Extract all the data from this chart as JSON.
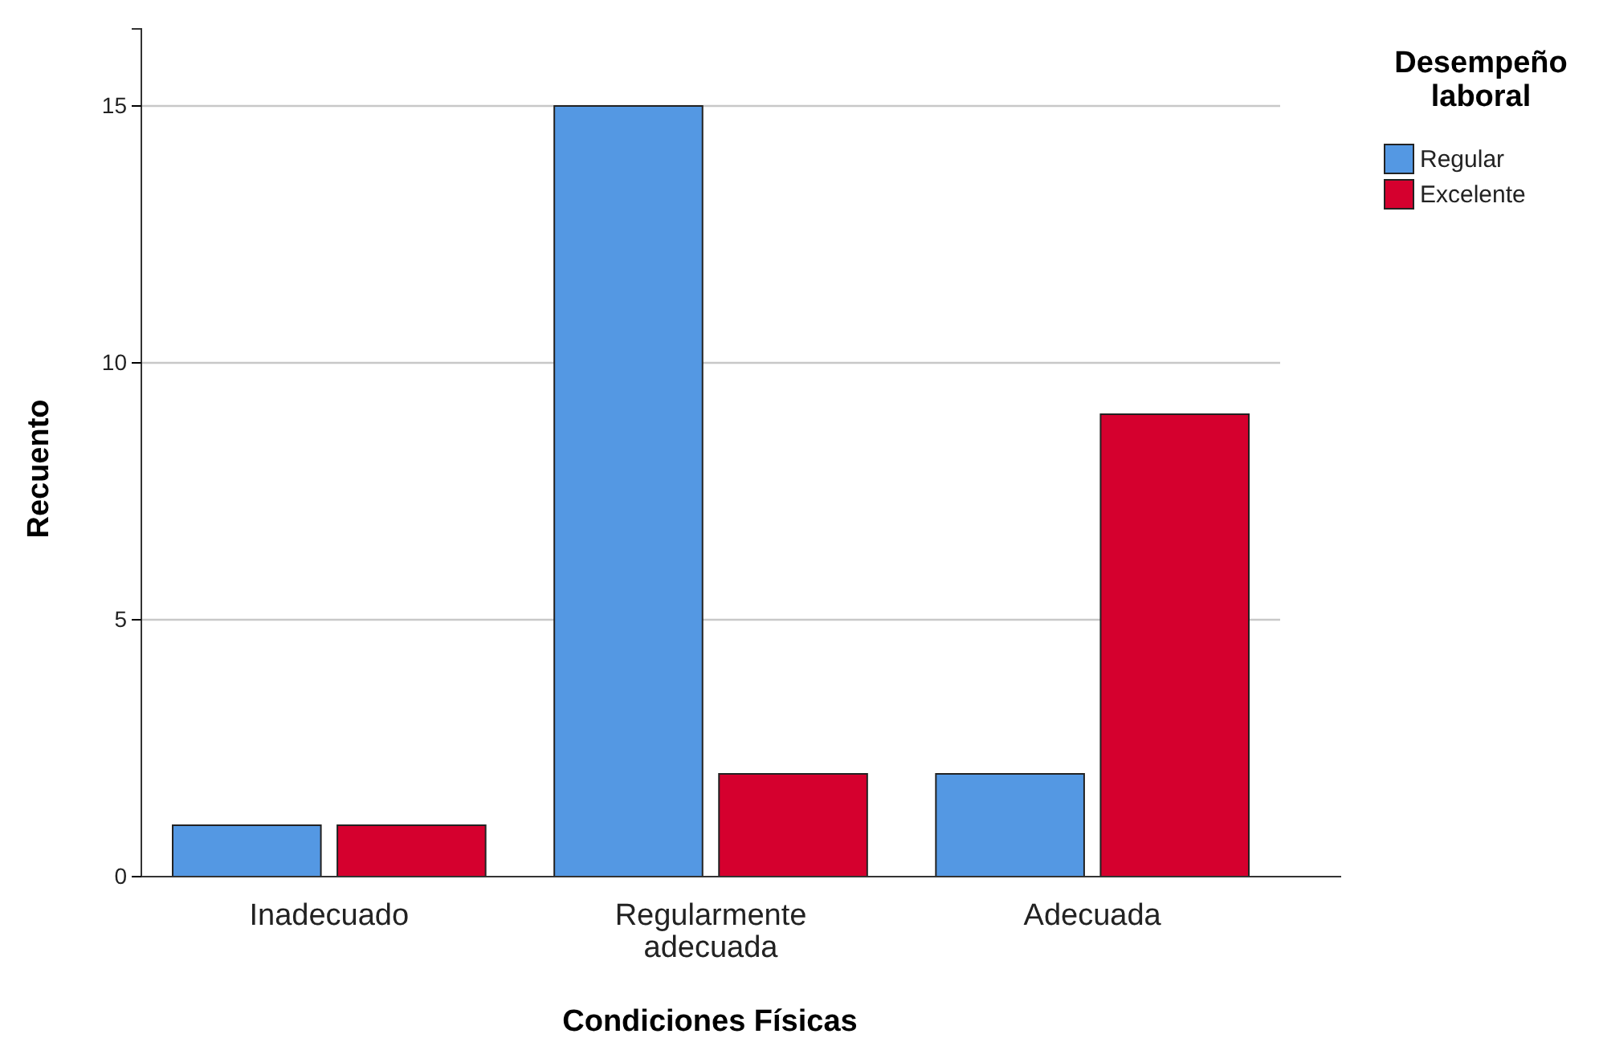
{
  "chart_data": {
    "type": "bar",
    "xlabel": "Condiciones Físicas",
    "ylabel": "Recuento",
    "legend_title": "Desempeño laboral",
    "categories": [
      "Inadecuado",
      "Regularmente adecuada",
      "Adecuada"
    ],
    "series": [
      {
        "name": "Regular",
        "color": "#5498e3",
        "values": [
          1,
          15,
          2
        ]
      },
      {
        "name": "Excelente",
        "color": "#d5002e",
        "values": [
          1,
          2,
          9
        ]
      }
    ],
    "ylim": [
      0,
      16.5
    ],
    "yticks": [
      0,
      5,
      10,
      15
    ],
    "grid": "y",
    "legend": "top right"
  }
}
